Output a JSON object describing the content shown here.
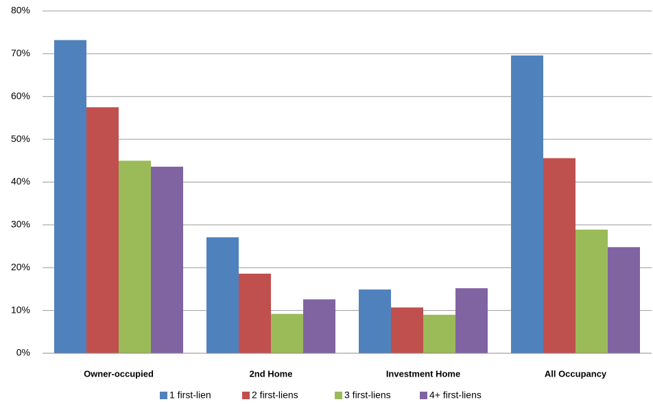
{
  "chart_data": {
    "type": "bar",
    "categories": [
      "Owner-occupied",
      "2nd Home",
      "Investment Home",
      "All Occupancy"
    ],
    "series": [
      {
        "name": "1 first-lien",
        "color": "#4f81bd",
        "values": [
          73.2,
          27.1,
          14.9,
          69.6
        ]
      },
      {
        "name": "2 first-liens",
        "color": "#c0504d",
        "values": [
          57.5,
          18.6,
          10.7,
          45.6
        ]
      },
      {
        "name": "3 first-liens",
        "color": "#9bbb59",
        "values": [
          45.0,
          9.2,
          9.0,
          28.9
        ]
      },
      {
        "name": "4+ first-liens",
        "color": "#8064a2",
        "values": [
          43.6,
          12.6,
          15.2,
          24.8
        ]
      }
    ],
    "ylim": [
      0,
      80
    ],
    "yticks": [
      {
        "value": 0,
        "label": "0%"
      },
      {
        "value": 10,
        "label": "10%"
      },
      {
        "value": 20,
        "label": "20%"
      },
      {
        "value": 30,
        "label": "30%"
      },
      {
        "value": 40,
        "label": "40%"
      },
      {
        "value": 50,
        "label": "50%"
      },
      {
        "value": 60,
        "label": "60%"
      },
      {
        "value": 70,
        "label": "70%"
      },
      {
        "value": 80,
        "label": "80%"
      }
    ],
    "grid": true
  }
}
